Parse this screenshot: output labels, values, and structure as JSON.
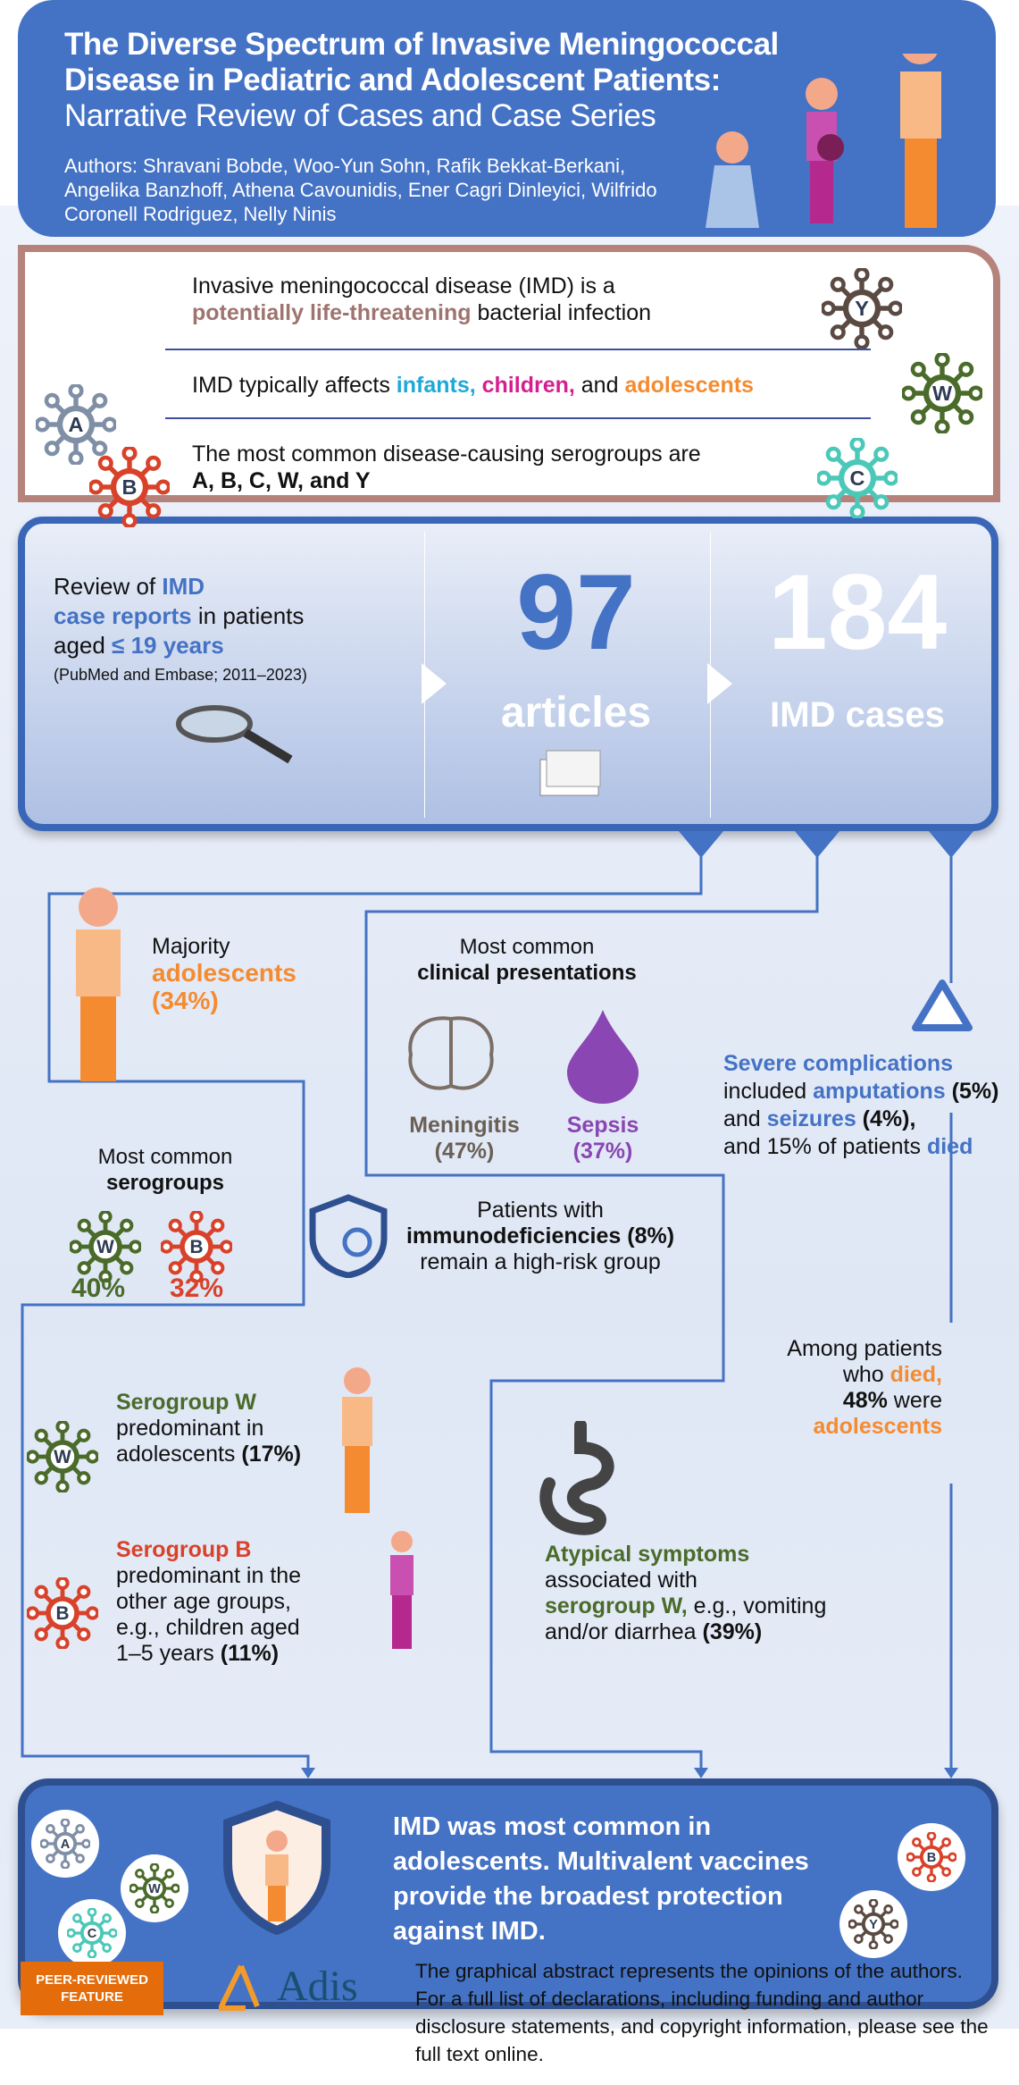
{
  "header": {
    "title_bold": "The Diverse Spectrum of Invasive Meningococcal Disease in Pediatric and Adolescent Patients:",
    "title_sub": "Narrative Review of Cases and Case Series",
    "authors": "Authors: Shravani Bobde, Woo-Yun Sohn, Rafik Bekkat-Berkani, Angelika Banzhoff, Athena Cavounidis, Ener Cagri Dinleyici, Wilfrido Coronell Rodriguez, Nelly Ninis"
  },
  "intro": {
    "line1a": "Invasive meningococcal disease (IMD) is a",
    "line1b": "potentially life-threatening",
    "line1c": " bacterial infection",
    "line2a": "IMD typically affects ",
    "line2b": "infants, ",
    "line2c": "children, ",
    "line2d": "and ",
    "line2e": "adolescents",
    "line3a": "The most common disease-causing serogroups are",
    "line3b": "A, B, C, W, and Y"
  },
  "stats": {
    "review1": "Review of ",
    "review2": "IMD",
    "review3": "case reports",
    "review4": " in patients aged ",
    "review5": "≤ 19 years",
    "source": "(PubMed and Embase; 2011–2023)",
    "articles_num": "97",
    "articles_label": "articles",
    "cases_num": "184",
    "cases_label": "IMD cases"
  },
  "findings": {
    "majority1": "Majority",
    "majority2": "adolescents",
    "majority3": "(34%)",
    "sero_title1": "Most common",
    "sero_title2": "serogroups",
    "sero_w": "40%",
    "sero_b": "32%",
    "clin1": "Most common",
    "clin2": "clinical presentations",
    "meningitis": "Meningitis",
    "meningitis_pct": "(47%)",
    "sepsis": "Sepsis",
    "sepsis_pct": "(37%)",
    "sev1": "Severe complications",
    "sev2": "included ",
    "sev3": "amputations",
    "sev4": " (5%)",
    "sev5": "and ",
    "sev6": "seizures",
    "sev7": " (4%),",
    "sev8": "and 15% of patients ",
    "sev9": "died",
    "immuno1": "Patients with",
    "immuno2": "immunodeficiencies (8%)",
    "immuno3": "remain a high-risk group",
    "died1": "Among patients",
    "died2": "who ",
    "died3": "died,",
    "died4": "48%",
    "died5": " were",
    "died6": "adolescents",
    "w1": "Serogroup W",
    "w2": "predominant in",
    "w3": "adolescents ",
    "w4": "(17%)",
    "b1": "Serogroup B",
    "b2": "predominant in the",
    "b3": "other age groups,",
    "b4": "e.g., children aged",
    "b5": "1–5 years ",
    "b6": "(11%)",
    "aty1": "Atypical symptoms",
    "aty2": "associated with",
    "aty3": "serogroup W,",
    "aty4": " e.g., vomiting",
    "aty5": "and/or diarrhea ",
    "aty6": "(39%)"
  },
  "conclusion": "IMD was most common in adolescents. Multivalent vaccines provide the broadest protection against IMD.",
  "footer": {
    "badge": "PEER-REVIEWED FEATURE",
    "logo": "Adis",
    "disclaimer": "The graphical abstract represents the opinions of the authors. For a full list of declarations, including funding and author disclosure statements, and copyright information, please see the full text online."
  },
  "colors": {
    "primary": "#4472c4",
    "orange": "#f58b31",
    "w": "#4a6b2a",
    "b": "#d9422a",
    "a": "#7f8fa6",
    "c": "#4bc8b8",
    "y": "#5a4a42",
    "sepsis": "#8a46b2",
    "brown": "#b5837b"
  },
  "icons": [
    "virus-a-icon",
    "virus-b-icon",
    "virus-c-icon",
    "virus-w-icon",
    "virus-y-icon",
    "magnifier-icon",
    "newspaper-icon",
    "brain-icon",
    "drop-icon",
    "warning-triangle-icon",
    "shield-virus-icon",
    "intestine-icon",
    "person-icon",
    "shield-icon"
  ]
}
